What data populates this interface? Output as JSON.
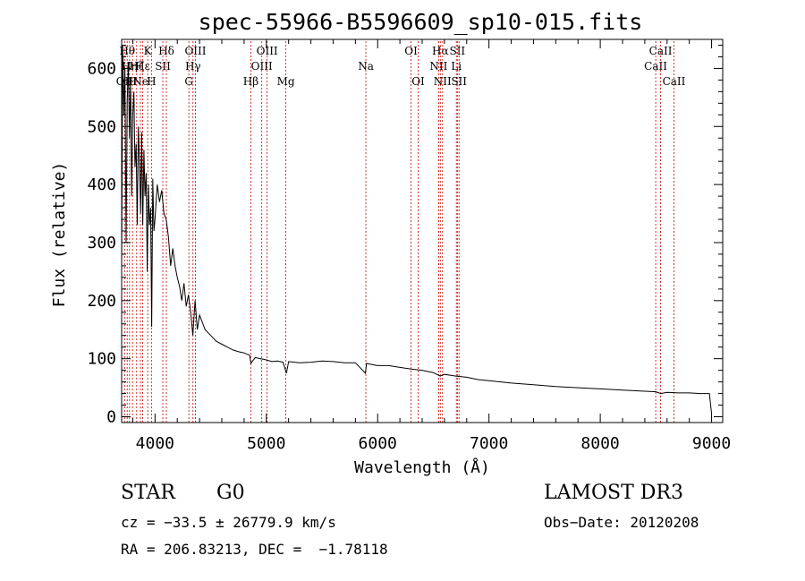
{
  "chart_data": {
    "type": "line",
    "title": "spec-55966-B5596609_sp10-015.fits",
    "xlabel": "Wavelength (Å)",
    "ylabel": "Flux (relative)",
    "xlim": [
      3700,
      9100
    ],
    "ylim": [
      -10,
      650
    ],
    "xticks": [
      4000,
      5000,
      6000,
      7000,
      8000,
      9000
    ],
    "yticks": [
      0,
      100,
      200,
      300,
      400,
      500,
      600
    ],
    "grid": false,
    "series": [
      {
        "name": "spectrum",
        "x": [
          3700,
          3710,
          3720,
          3730,
          3740,
          3750,
          3760,
          3770,
          3780,
          3790,
          3800,
          3810,
          3820,
          3830,
          3840,
          3850,
          3860,
          3870,
          3880,
          3890,
          3900,
          3910,
          3920,
          3930,
          3940,
          3950,
          3960,
          3970,
          3980,
          3990,
          4000,
          4020,
          4040,
          4060,
          4080,
          4100,
          4120,
          4140,
          4160,
          4180,
          4200,
          4220,
          4240,
          4260,
          4280,
          4300,
          4320,
          4340,
          4360,
          4380,
          4400,
          4450,
          4500,
          4550,
          4600,
          4650,
          4700,
          4750,
          4800,
          4850,
          4861,
          4900,
          4950,
          5000,
          5050,
          5100,
          5150,
          5180,
          5200,
          5300,
          5400,
          5500,
          5600,
          5700,
          5800,
          5890,
          5900,
          5950,
          6000,
          6100,
          6200,
          6300,
          6400,
          6500,
          6563,
          6600,
          6700,
          6800,
          6900,
          7000,
          7200,
          7400,
          7600,
          7800,
          8000,
          8200,
          8400,
          8500,
          8542,
          8600,
          8700,
          8800,
          8900,
          8980,
          9000
        ],
        "values": [
          260,
          640,
          520,
          600,
          300,
          540,
          610,
          480,
          580,
          380,
          520,
          560,
          430,
          470,
          330,
          500,
          440,
          350,
          490,
          330,
          460,
          380,
          420,
          250,
          400,
          330,
          360,
          155,
          410,
          320,
          340,
          400,
          370,
          390,
          350,
          340,
          310,
          260,
          290,
          260,
          240,
          225,
          200,
          230,
          190,
          210,
          180,
          140,
          200,
          150,
          175,
          150,
          140,
          130,
          125,
          120,
          115,
          112,
          110,
          106,
          92,
          102,
          100,
          98,
          95,
          96,
          94,
          75,
          95,
          93,
          94,
          96,
          95,
          93,
          93,
          75,
          92,
          90,
          88,
          88,
          85,
          82,
          80,
          76,
          70,
          73,
          70,
          68,
          64,
          62,
          58,
          55,
          52,
          50,
          48,
          46,
          44,
          43,
          40,
          42,
          41,
          41,
          40,
          40,
          5
        ]
      }
    ],
    "line_markers": [
      {
        "wavelength": 3727,
        "label": "OII",
        "row": 3
      },
      {
        "wavelength": 3750,
        "label": "Hθ",
        "row": 1
      },
      {
        "wavelength": 3771,
        "label": "Hη",
        "row": 2
      },
      {
        "wavelength": 3798,
        "label": "H",
        "row": 3
      },
      {
        "wavelength": 3835,
        "label": "Hζ",
        "row": 2
      },
      {
        "wavelength": 3869,
        "label": "Ne",
        "row": 3
      },
      {
        "wavelength": 3889,
        "label": "Hε",
        "row": 2
      },
      {
        "wavelength": 3934,
        "label": "K",
        "row": 1
      },
      {
        "wavelength": 3968,
        "label": "H",
        "row": 3
      },
      {
        "wavelength": 4070,
        "label": "SII",
        "row": 2
      },
      {
        "wavelength": 4102,
        "label": "Hδ",
        "row": 1
      },
      {
        "wavelength": 4304,
        "label": "G",
        "row": 3
      },
      {
        "wavelength": 4341,
        "label": "Hγ",
        "row": 2
      },
      {
        "wavelength": 4363,
        "label": "OIII",
        "row": 1
      },
      {
        "wavelength": 4861,
        "label": "Hβ",
        "row": 3
      },
      {
        "wavelength": 4959,
        "label": "OIII",
        "row": 2
      },
      {
        "wavelength": 5007,
        "label": "OIII",
        "row": 1
      },
      {
        "wavelength": 5175,
        "label": "Mg",
        "row": 3
      },
      {
        "wavelength": 5894,
        "label": "Na",
        "row": 2
      },
      {
        "wavelength": 6300,
        "label": "OI",
        "row": 1
      },
      {
        "wavelength": 6364,
        "label": "OI",
        "row": 3
      },
      {
        "wavelength": 6548,
        "label": "NII",
        "row": 2
      },
      {
        "wavelength": 6563,
        "label": "Hα",
        "row": 1
      },
      {
        "wavelength": 6583,
        "label": "NII",
        "row": 3
      },
      {
        "wavelength": 6707,
        "label": "Li",
        "row": 2
      },
      {
        "wavelength": 6716,
        "label": "SII",
        "row": 1
      },
      {
        "wavelength": 6731,
        "label": "SII",
        "row": 3
      },
      {
        "wavelength": 8498,
        "label": "CaII",
        "row": 2
      },
      {
        "wavelength": 8542,
        "label": "CaII",
        "row": 1
      },
      {
        "wavelength": 8662,
        "label": "CaII",
        "row": 3
      }
    ]
  },
  "info": {
    "object_class": "STAR",
    "subclass": "G0",
    "survey": "LAMOST DR3",
    "cz": "cz = −33.5 ± 26779.9 km/s",
    "obs_date": "Obs−Date: 20120208",
    "radec": "RA = 206.83213, DEC =  −1.78118"
  },
  "colors": {
    "spectrum": "#000000",
    "marker_line": "#cc0000",
    "axes": "#000000"
  }
}
